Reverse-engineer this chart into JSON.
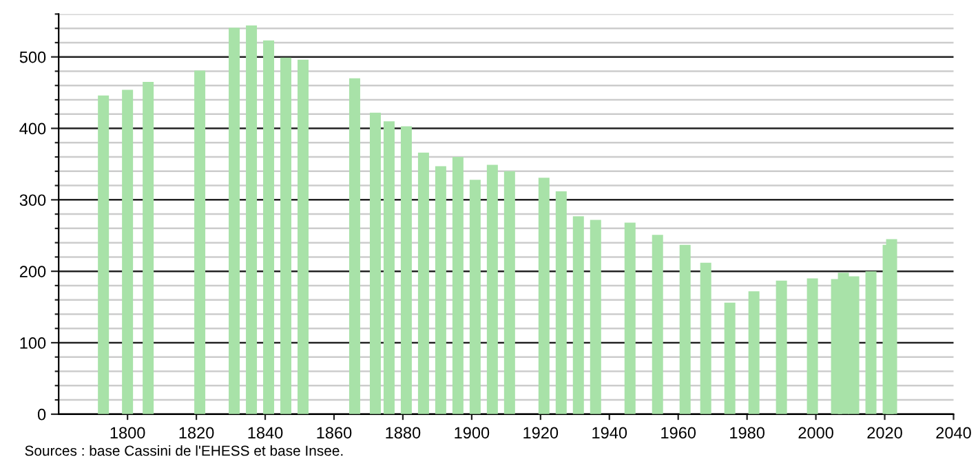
{
  "chart_data": {
    "type": "bar",
    "x": [
      1793,
      1800,
      1806,
      1821,
      1831,
      1836,
      1841,
      1846,
      1851,
      1866,
      1872,
      1876,
      1881,
      1886,
      1891,
      1896,
      1901,
      1906,
      1911,
      1921,
      1926,
      1931,
      1936,
      1946,
      1954,
      1962,
      1968,
      1975,
      1982,
      1990,
      1999,
      2006,
      2008,
      2011,
      2016,
      2021,
      2022
    ],
    "values": [
      446,
      454,
      465,
      481,
      541,
      544,
      523,
      499,
      496,
      470,
      422,
      410,
      403,
      366,
      347,
      360,
      328,
      349,
      340,
      331,
      312,
      277,
      272,
      268,
      251,
      237,
      212,
      156,
      172,
      187,
      190,
      189,
      198,
      193,
      200,
      237,
      245
    ],
    "color": "#a8e2a8",
    "xlim": [
      1780,
      2040
    ],
    "xticks": [
      1800,
      1820,
      1840,
      1860,
      1880,
      1900,
      1920,
      1940,
      1960,
      1980,
      2000,
      2020,
      2040
    ],
    "ylim": [
      0,
      560
    ],
    "yticks": [
      0,
      {
        "value": 20,
        "label": null
      },
      {
        "value": 40,
        "label": null
      },
      {
        "value": 60,
        "label": null
      },
      {
        "value": 80,
        "label": null
      },
      100,
      {
        "value": 120,
        "label": null
      },
      {
        "value": 140,
        "label": null
      },
      {
        "value": 160,
        "label": null
      },
      {
        "value": 180,
        "label": null
      },
      200,
      {
        "value": 220,
        "label": null
      },
      {
        "value": 240,
        "label": null
      },
      {
        "value": 260,
        "label": null
      },
      {
        "value": 280,
        "label": null
      },
      300,
      {
        "value": 320,
        "label": null
      },
      {
        "value": 340,
        "label": null
      },
      {
        "value": 360,
        "label": null
      },
      {
        "value": 380,
        "label": null
      },
      400,
      {
        "value": 420,
        "label": null
      },
      {
        "value": 440,
        "label": null
      },
      {
        "value": 460,
        "label": null
      },
      {
        "value": 480,
        "label": null
      },
      500,
      {
        "value": 520,
        "label": null
      },
      {
        "value": 540,
        "label": null
      },
      {
        "value": 560,
        "label": null
      }
    ],
    "grid": "y",
    "annotations": [
      "Sources : base Cassini de l'EHESS et base Insee."
    ]
  }
}
